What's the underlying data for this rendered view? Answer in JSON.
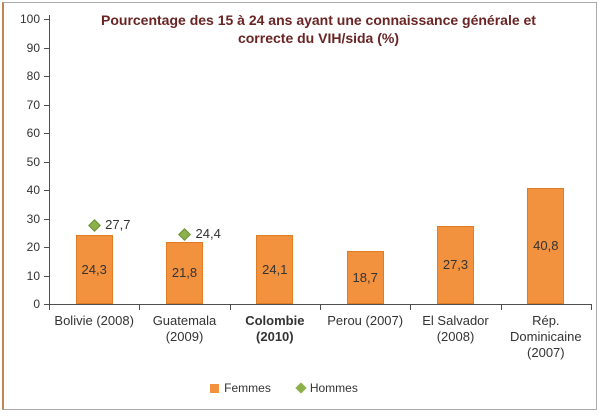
{
  "window": {
    "background": "#FFFFFF",
    "frame_border_color": "#ABABAB",
    "frame_left_border_color": "#C08552"
  },
  "chart_data": {
    "type": "bar",
    "title": "Pourcentage des 15 à 24 ans ayant une connaissance générale et correcte du VIH/sida (%)",
    "title_lines": [
      "Pourcentage des 15 à 24 ans ayant une connaissance générale et",
      "correcte du VIH/sida (%)"
    ],
    "title_color": "#692423",
    "categories": [
      "Bolivie (2008)",
      "Guatemala (2009)",
      "Colombie (2010)",
      "Perou (2007)",
      "El Salvador (2008)",
      "Rép. Dominicaine (2007)"
    ],
    "category_lines": [
      [
        "Bolivie (2008)"
      ],
      [
        "Guatemala",
        "(2009)"
      ],
      [
        "Colombie",
        "(2010)"
      ],
      [
        "Perou (2007)"
      ],
      [
        "El Salvador",
        "(2008)"
      ],
      [
        "Rép.",
        "Dominicaine",
        "(2007)"
      ]
    ],
    "category_bold": [
      false,
      false,
      true,
      false,
      false,
      false
    ],
    "series": [
      {
        "name": "Femmes",
        "type": "bar",
        "color": "#F2923E",
        "border_color": "#DE7B23",
        "values": [
          24.3,
          21.8,
          24.1,
          18.7,
          27.3,
          40.8
        ],
        "labels": [
          "24,3",
          "21,8",
          "24,1",
          "18,7",
          "27,3",
          "40,8"
        ]
      },
      {
        "name": "Hommes",
        "type": "scatter",
        "marker": "diamond",
        "color": "#8CB14B",
        "border_color": "#6E8F35",
        "values": [
          27.7,
          24.4,
          null,
          null,
          null,
          null
        ],
        "labels": [
          "27,7",
          "24,4",
          null,
          null,
          null,
          null
        ]
      }
    ],
    "ylim": [
      0,
      100
    ],
    "ytick_step": 10,
    "ytick_labels": [
      "0",
      "10",
      "20",
      "30",
      "40",
      "50",
      "60",
      "70",
      "80",
      "90",
      "100"
    ],
    "grid": false,
    "legend_position": "bottom",
    "axis_color": "#4F4F4F",
    "text_color": "#333333"
  }
}
